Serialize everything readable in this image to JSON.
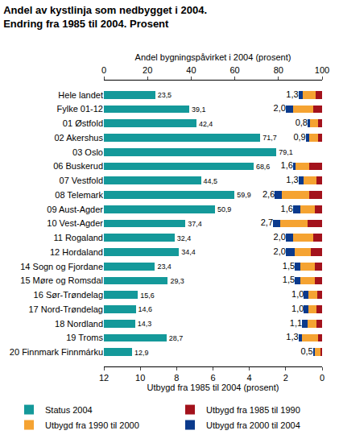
{
  "chart_data": {
    "type": "bar",
    "orientation": "horizontal",
    "stacked": true,
    "grid": false,
    "legend": "bottom",
    "title": "Andel av kystlinja som nedbygget i 2004.\nEndring fra 1985 til 2004. Prosent",
    "x2_label": "Andel bygningspåvirket i 2004 (prosent)",
    "x_label": "Utbygd fra 1985 til 2004 (prosent)",
    "categories": [
      "Hele landet",
      "Fylke 01-12",
      "01 Østfold",
      "02 Akershus",
      "03 Oslo",
      "06 Buskerud",
      "07 Vestfold",
      "08 Telemark",
      "09 Aust-Agder",
      "10 Vest-Agder",
      "11 Rogaland",
      "12 Hordaland",
      "14 Sogn og Fjordane",
      "15 Møre og Romsdal",
      "16 Sør-Trøndelag",
      "17 Nord-Trøndelag",
      "18 Nordland",
      "19 Troms",
      "20 Finnmark Finnmárku"
    ],
    "x2lim": [
      0,
      100
    ],
    "x2ticks": [
      0,
      20,
      40,
      60,
      80,
      100
    ],
    "xlim": [
      12,
      0
    ],
    "xticks": [
      12,
      10,
      8,
      6,
      4,
      2,
      0
    ],
    "status": {
      "name": "Status 2004",
      "color": "#14999a",
      "data_labels": true,
      "values": [
        23.5,
        39.1,
        42.4,
        71.7,
        79.1,
        68.6,
        44.5,
        59.9,
        50.9,
        37.4,
        32.4,
        34.4,
        23.4,
        29.3,
        15.6,
        14.6,
        14.3,
        28.7,
        12.9
      ],
      "value_labels": [
        "23,5",
        "39,1",
        "42,4",
        "71,7",
        "79,1",
        "68,6",
        "44,5",
        "59,9",
        "50,9",
        "37,4",
        "32,4",
        "34,4",
        "23,4",
        "29,3",
        "15,6",
        "14,6",
        "14,3",
        "28,7",
        "12,9"
      ]
    },
    "series": [
      {
        "name": "Utbygd fra 1985 til 1990",
        "color": "#a3121c",
        "values": [
          0.35,
          0.5,
          0.2,
          0.2,
          null,
          0.7,
          0.3,
          0.7,
          0.4,
          0.8,
          0.5,
          0.6,
          0.4,
          0.4,
          0.25,
          0.3,
          0.3,
          0.2,
          0.1
        ]
      },
      {
        "name": "Utbygd fra 1990 til 2000",
        "color": "#f5a332",
        "values": [
          0.7,
          1.1,
          0.45,
          0.5,
          null,
          0.75,
          0.7,
          1.5,
          0.8,
          1.5,
          1.1,
          0.9,
          0.8,
          0.8,
          0.5,
          0.45,
          0.5,
          0.9,
          0.3
        ]
      },
      {
        "name": "Utbygd fra 2000 til 2004",
        "color": "#0b3a8c",
        "values": [
          0.25,
          0.4,
          0.15,
          0.2,
          null,
          0.15,
          0.3,
          0.4,
          0.4,
          0.4,
          0.4,
          0.5,
          0.3,
          0.3,
          0.25,
          0.25,
          0.3,
          0.2,
          0.1
        ]
      }
    ],
    "totals": [
      1.3,
      2.0,
      0.8,
      0.9,
      null,
      1.6,
      1.3,
      2.6,
      1.6,
      2.7,
      2.0,
      2.0,
      1.5,
      1.5,
      1.0,
      1.0,
      1.1,
      1.3,
      0.5
    ],
    "total_labels": [
      "1,3",
      "2,0",
      "0,8",
      "0,9",
      null,
      "1,6",
      "1,3",
      "2,6",
      "1,6",
      "2,7",
      "2,0",
      "2,0",
      "1,5",
      "1,5",
      "1,0",
      "1,0",
      "1,1",
      "1,3",
      "0,5"
    ]
  }
}
